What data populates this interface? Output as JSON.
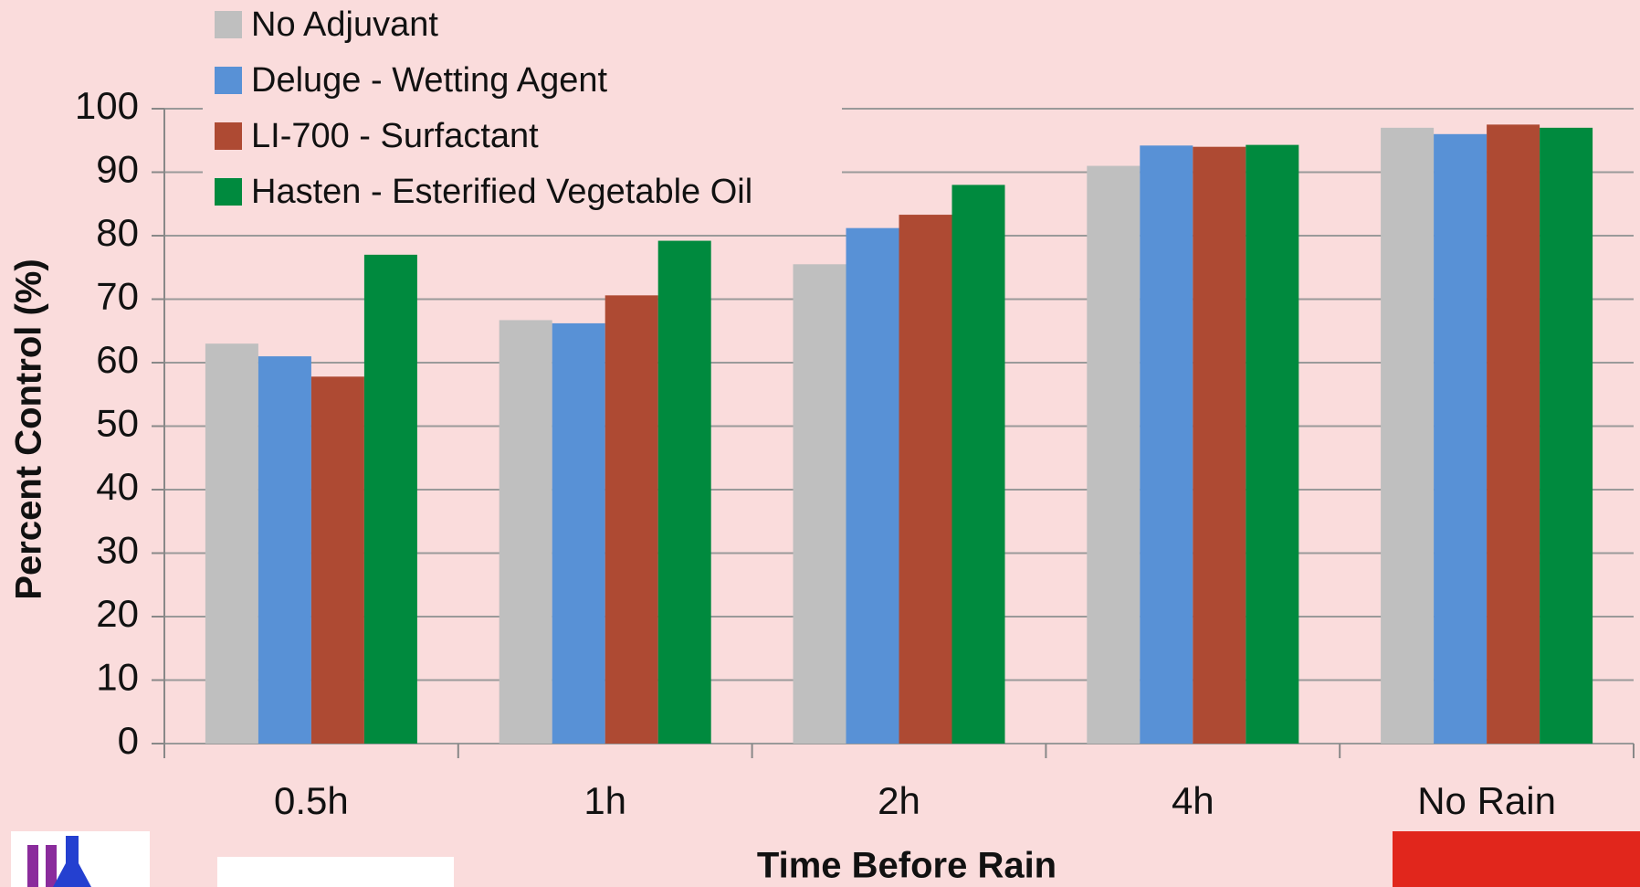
{
  "chart_data": {
    "type": "bar",
    "categories": [
      "0.5h",
      "1h",
      "2h",
      "4h",
      "No Rain"
    ],
    "series": [
      {
        "name": "No Adjuvant",
        "color": "#bfbfbf",
        "values": [
          63,
          66.7,
          75.5,
          91,
          97
        ]
      },
      {
        "name": "Deluge - Wetting Agent",
        "color": "#5891d6",
        "values": [
          61,
          66.2,
          81.2,
          94.2,
          96
        ]
      },
      {
        "name": "LI-700 - Surfactant",
        "color": "#ae4a33",
        "values": [
          57.8,
          70.6,
          83.3,
          94,
          97.5
        ]
      },
      {
        "name": "Hasten - Esterified Vegetable Oil",
        "color": "#008a3e",
        "values": [
          77,
          79.2,
          88,
          94.3,
          97
        ]
      }
    ],
    "y_label": "Percent Control (%)",
    "x_label": "Time Before Rain",
    "ylim": [
      0,
      100
    ],
    "yticks": [
      0,
      10,
      20,
      30,
      40,
      50,
      60,
      70,
      80,
      90,
      100
    ],
    "grid": true,
    "legend": "top-left"
  }
}
